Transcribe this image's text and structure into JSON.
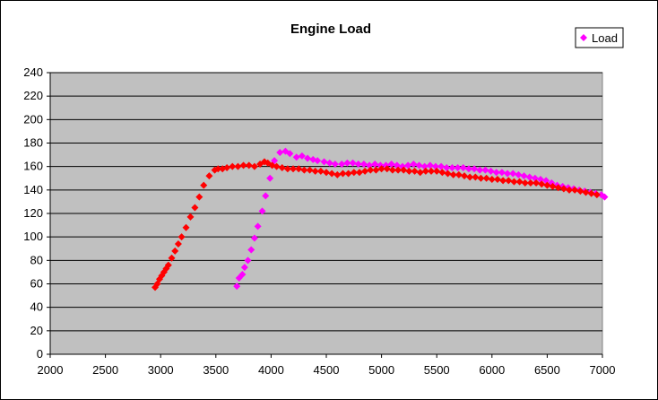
{
  "chart_data": {
    "type": "scatter",
    "title": "Engine Load",
    "xlabel": "",
    "ylabel": "",
    "xlim": [
      2000,
      7000
    ],
    "ylim": [
      0,
      240
    ],
    "x_ticks": [
      2000,
      2500,
      3000,
      3500,
      4000,
      4500,
      5000,
      5500,
      6000,
      6500,
      7000
    ],
    "y_ticks": [
      0,
      20,
      40,
      60,
      80,
      100,
      120,
      140,
      160,
      180,
      200,
      220,
      240
    ],
    "grid": "horizontal",
    "plot_background": "#c0c0c0",
    "legend_position": "top-right",
    "series": [
      {
        "name": "Load",
        "color": "#ff00ff",
        "marker": "diamond",
        "x": [
          3690,
          3710,
          3740,
          3760,
          3790,
          3820,
          3850,
          3880,
          3920,
          3950,
          3990,
          4030,
          4080,
          4130,
          4170,
          4230,
          4280,
          4330,
          4380,
          4420,
          4480,
          4530,
          4580,
          4640,
          4690,
          4740,
          4790,
          4840,
          4890,
          4940,
          4990,
          5040,
          5090,
          5140,
          5190,
          5240,
          5290,
          5340,
          5390,
          5440,
          5490,
          5540,
          5590,
          5640,
          5690,
          5740,
          5790,
          5840,
          5890,
          5940,
          5990,
          6040,
          6090,
          6140,
          6190,
          6240,
          6290,
          6340,
          6390,
          6440,
          6490,
          6540,
          6590,
          6640,
          6690,
          6740,
          6790,
          6840,
          6890,
          6940,
          6990,
          7020
        ],
        "y": [
          58,
          65,
          68,
          74,
          80,
          89,
          99,
          109,
          122,
          135,
          150,
          165,
          172,
          173,
          171,
          168,
          169,
          167,
          166,
          165,
          164,
          163,
          162,
          162,
          163,
          163,
          162,
          162,
          161,
          162,
          161,
          161,
          162,
          161,
          160,
          161,
          162,
          161,
          160,
          161,
          160,
          160,
          159,
          159,
          159,
          159,
          158,
          158,
          157,
          157,
          156,
          155,
          155,
          154,
          154,
          153,
          152,
          151,
          150,
          149,
          148,
          146,
          144,
          143,
          142,
          141,
          140,
          139,
          138,
          137,
          136,
          134
        ]
      },
      {
        "name": "",
        "color": "#ff0000",
        "marker": "diamond",
        "x": [
          2950,
          2970,
          2990,
          3010,
          3030,
          3050,
          3070,
          3100,
          3130,
          3160,
          3190,
          3230,
          3270,
          3310,
          3350,
          3390,
          3440,
          3490,
          3520,
          3560,
          3600,
          3650,
          3700,
          3750,
          3800,
          3850,
          3900,
          3940,
          3970,
          4010,
          4050,
          4100,
          4150,
          4200,
          4250,
          4300,
          4350,
          4400,
          4450,
          4500,
          4550,
          4600,
          4650,
          4700,
          4750,
          4800,
          4850,
          4900,
          4950,
          5000,
          5050,
          5100,
          5150,
          5200,
          5250,
          5300,
          5350,
          5400,
          5450,
          5500,
          5550,
          5600,
          5650,
          5700,
          5750,
          5800,
          5850,
          5900,
          5950,
          6000,
          6050,
          6100,
          6150,
          6200,
          6250,
          6300,
          6350,
          6400,
          6450,
          6500,
          6550,
          6600,
          6650,
          6700,
          6750,
          6800,
          6850,
          6900,
          6950
        ],
        "y": [
          57,
          60,
          64,
          67,
          70,
          73,
          76,
          82,
          88,
          94,
          100,
          108,
          117,
          125,
          134,
          144,
          152,
          157,
          158,
          158,
          159,
          160,
          160,
          161,
          161,
          160,
          162,
          164,
          163,
          161,
          160,
          159,
          158,
          158,
          158,
          157,
          157,
          156,
          156,
          155,
          154,
          153,
          154,
          154,
          155,
          155,
          156,
          157,
          157,
          158,
          158,
          157,
          157,
          157,
          156,
          156,
          155,
          156,
          156,
          156,
          155,
          154,
          153,
          153,
          152,
          151,
          151,
          150,
          150,
          149,
          149,
          148,
          148,
          147,
          147,
          146,
          146,
          146,
          145,
          144,
          143,
          142,
          141,
          140,
          140,
          139,
          138,
          137,
          136
        ]
      }
    ]
  }
}
